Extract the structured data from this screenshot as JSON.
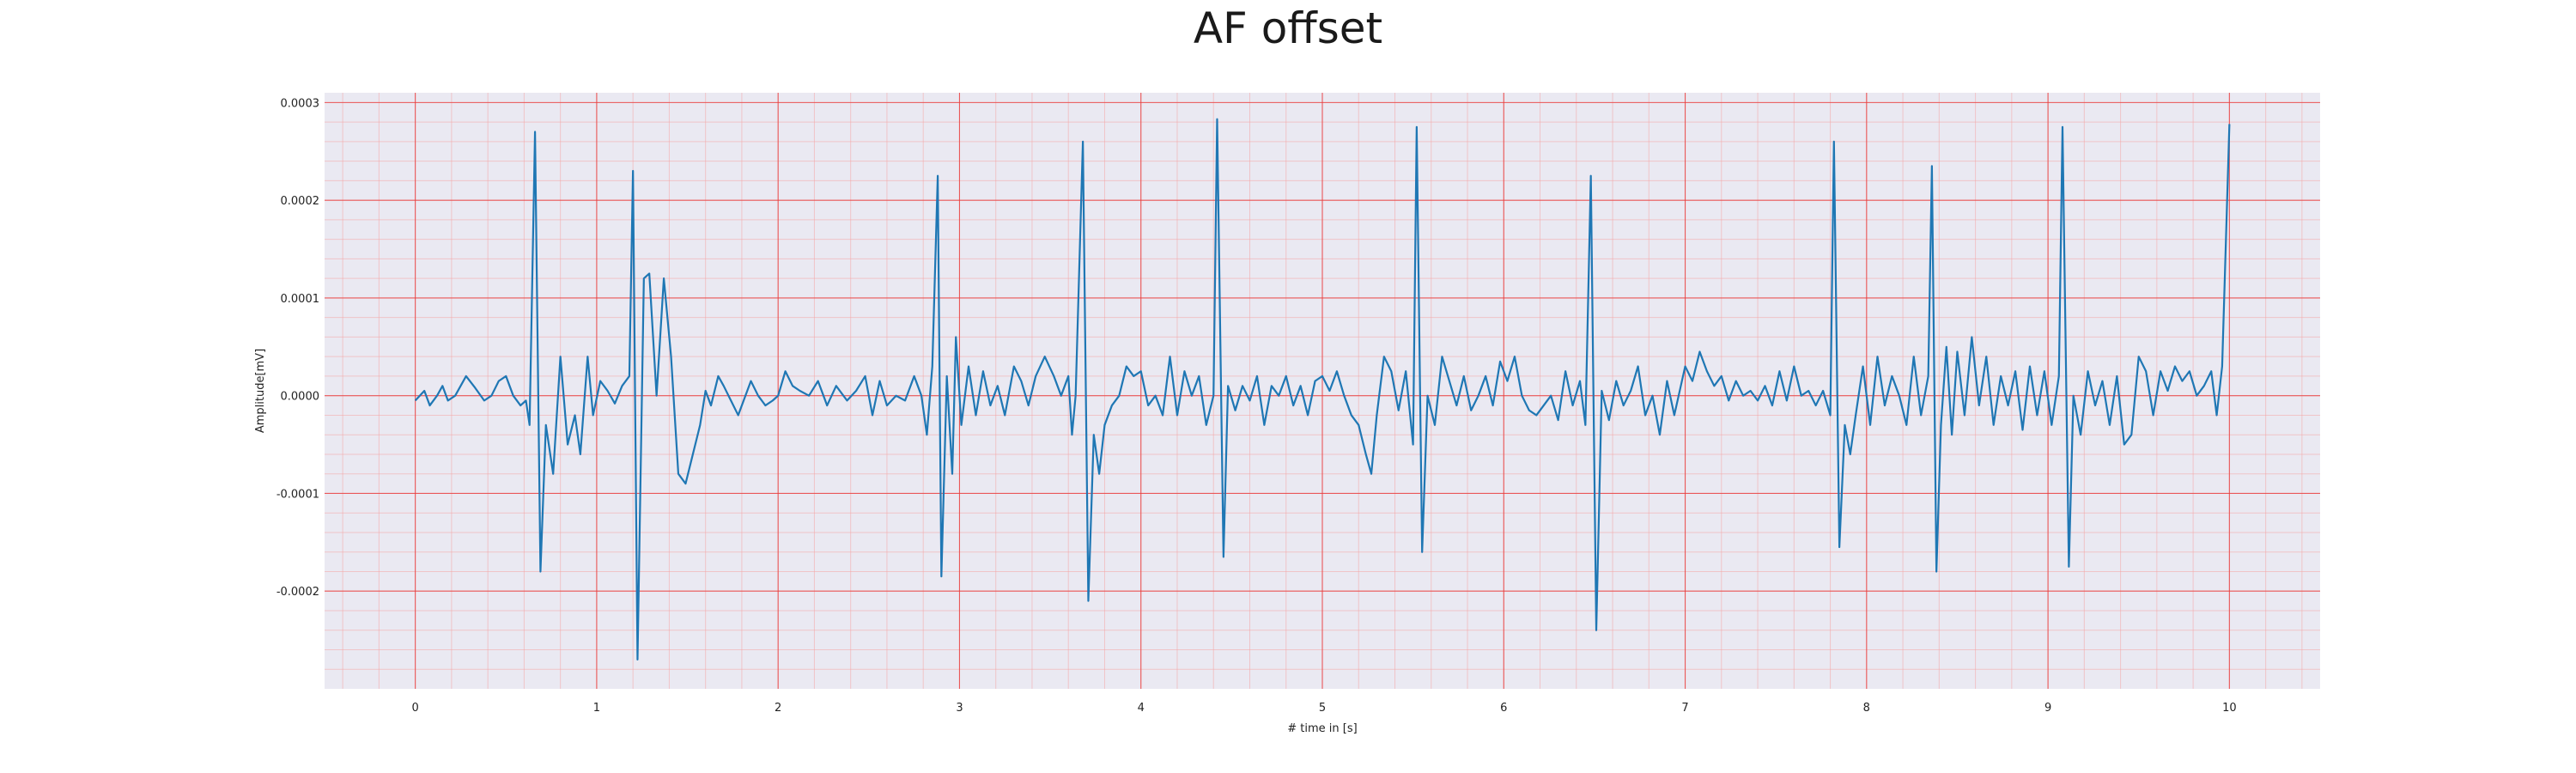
{
  "chart_data": {
    "type": "line",
    "title": "AF offset",
    "xlabel": "# time in [s]",
    "ylabel": "Amplitude[mV]",
    "xlim": [
      -0.5,
      10.5
    ],
    "ylim": [
      -0.0003,
      0.00031
    ],
    "x_ticks": [
      0,
      1,
      2,
      3,
      4,
      5,
      6,
      7,
      8,
      9,
      10
    ],
    "x_tick_labels": [
      "0",
      "1",
      "2",
      "3",
      "4",
      "5",
      "6",
      "7",
      "8",
      "9",
      "10"
    ],
    "y_ticks": [
      -0.0002,
      -0.0001,
      0.0,
      0.0001,
      0.0002,
      0.0003
    ],
    "y_tick_labels": [
      "-0.0002",
      "-0.0001",
      "0.0000",
      "0.0001",
      "0.0002",
      "0.0003"
    ],
    "grid": true,
    "series": [
      {
        "color": "#1f77b4",
        "points": [
          [
            0.0,
            -5e-06
          ],
          [
            0.05,
            5e-06
          ],
          [
            0.08,
            -1e-05
          ],
          [
            0.12,
            0.0
          ],
          [
            0.15,
            1e-05
          ],
          [
            0.18,
            -5e-06
          ],
          [
            0.22,
            0.0
          ],
          [
            0.28,
            2e-05
          ],
          [
            0.33,
            8e-06
          ],
          [
            0.38,
            -5e-06
          ],
          [
            0.42,
            0.0
          ],
          [
            0.46,
            1.5e-05
          ],
          [
            0.5,
            2e-05
          ],
          [
            0.54,
            0.0
          ],
          [
            0.58,
            -1e-05
          ],
          [
            0.61,
            -5e-06
          ],
          [
            0.63,
            -3e-05
          ],
          [
            0.66,
            0.00027
          ],
          [
            0.69,
            -0.00018
          ],
          [
            0.72,
            -3e-05
          ],
          [
            0.76,
            -8e-05
          ],
          [
            0.8,
            4e-05
          ],
          [
            0.84,
            -5e-05
          ],
          [
            0.88,
            -2e-05
          ],
          [
            0.91,
            -6e-05
          ],
          [
            0.95,
            4e-05
          ],
          [
            0.98,
            -2e-05
          ],
          [
            1.02,
            1.5e-05
          ],
          [
            1.06,
            5e-06
          ],
          [
            1.1,
            -8e-06
          ],
          [
            1.14,
            1e-05
          ],
          [
            1.18,
            2e-05
          ],
          [
            1.2,
            0.00023
          ],
          [
            1.225,
            -0.00027
          ],
          [
            1.26,
            0.00012
          ],
          [
            1.29,
            0.000125
          ],
          [
            1.33,
            0.0
          ],
          [
            1.37,
            0.00012
          ],
          [
            1.41,
            4e-05
          ],
          [
            1.45,
            -8e-05
          ],
          [
            1.49,
            -9e-05
          ],
          [
            1.53,
            -6e-05
          ],
          [
            1.57,
            -3e-05
          ],
          [
            1.6,
            5e-06
          ],
          [
            1.63,
            -1e-05
          ],
          [
            1.67,
            2e-05
          ],
          [
            1.7,
            1e-05
          ],
          [
            1.74,
            -5e-06
          ],
          [
            1.78,
            -2e-05
          ],
          [
            1.81,
            -5e-06
          ],
          [
            1.85,
            1.5e-05
          ],
          [
            1.89,
            0.0
          ],
          [
            1.93,
            -1e-05
          ],
          [
            1.97,
            -5e-06
          ],
          [
            2.0,
            0.0
          ],
          [
            2.04,
            2.5e-05
          ],
          [
            2.08,
            1e-05
          ],
          [
            2.12,
            5e-06
          ],
          [
            2.17,
            0.0
          ],
          [
            2.22,
            1.5e-05
          ],
          [
            2.27,
            -1e-05
          ],
          [
            2.32,
            1e-05
          ],
          [
            2.38,
            -5e-06
          ],
          [
            2.43,
            5e-06
          ],
          [
            2.48,
            2e-05
          ],
          [
            2.52,
            -2e-05
          ],
          [
            2.56,
            1.5e-05
          ],
          [
            2.6,
            -1e-05
          ],
          [
            2.65,
            0.0
          ],
          [
            2.7,
            -5e-06
          ],
          [
            2.75,
            2e-05
          ],
          [
            2.79,
            0.0
          ],
          [
            2.82,
            -4e-05
          ],
          [
            2.85,
            3e-05
          ],
          [
            2.88,
            0.000225
          ],
          [
            2.9,
            -0.000185
          ],
          [
            2.93,
            2e-05
          ],
          [
            2.96,
            -8e-05
          ],
          [
            2.98,
            6e-05
          ],
          [
            3.01,
            -3e-05
          ],
          [
            3.05,
            3e-05
          ],
          [
            3.09,
            -2e-05
          ],
          [
            3.13,
            2.5e-05
          ],
          [
            3.17,
            -1e-05
          ],
          [
            3.21,
            1e-05
          ],
          [
            3.25,
            -2e-05
          ],
          [
            3.3,
            3e-05
          ],
          [
            3.34,
            1.5e-05
          ],
          [
            3.38,
            -1e-05
          ],
          [
            3.42,
            2e-05
          ],
          [
            3.47,
            4e-05
          ],
          [
            3.52,
            2e-05
          ],
          [
            3.56,
            0.0
          ],
          [
            3.6,
            2e-05
          ],
          [
            3.62,
            -4e-05
          ],
          [
            3.64,
            0.0
          ],
          [
            3.68,
            0.00026
          ],
          [
            3.71,
            -0.00021
          ],
          [
            3.74,
            -4e-05
          ],
          [
            3.77,
            -8e-05
          ],
          [
            3.8,
            -3e-05
          ],
          [
            3.84,
            -1e-05
          ],
          [
            3.88,
            0.0
          ],
          [
            3.92,
            3e-05
          ],
          [
            3.96,
            2e-05
          ],
          [
            4.0,
            2.5e-05
          ],
          [
            4.04,
            -1e-05
          ],
          [
            4.08,
            0.0
          ],
          [
            4.12,
            -2e-05
          ],
          [
            4.16,
            4e-05
          ],
          [
            4.2,
            -2e-05
          ],
          [
            4.24,
            2.5e-05
          ],
          [
            4.28,
            0.0
          ],
          [
            4.32,
            2e-05
          ],
          [
            4.36,
            -3e-05
          ],
          [
            4.4,
            0.0
          ],
          [
            4.42,
            0.000283
          ],
          [
            4.455,
            -0.000165
          ],
          [
            4.48,
            1e-05
          ],
          [
            4.52,
            -1.5e-05
          ],
          [
            4.56,
            1e-05
          ],
          [
            4.6,
            -5e-06
          ],
          [
            4.64,
            2e-05
          ],
          [
            4.68,
            -3e-05
          ],
          [
            4.72,
            1e-05
          ],
          [
            4.76,
            0.0
          ],
          [
            4.8,
            2e-05
          ],
          [
            4.84,
            -1e-05
          ],
          [
            4.88,
            1e-05
          ],
          [
            4.92,
            -2e-05
          ],
          [
            4.96,
            1.5e-05
          ],
          [
            5.0,
            2e-05
          ],
          [
            5.04,
            5e-06
          ],
          [
            5.08,
            2.5e-05
          ],
          [
            5.12,
            0.0
          ],
          [
            5.16,
            -2e-05
          ],
          [
            5.2,
            -3e-05
          ],
          [
            5.24,
            -6e-05
          ],
          [
            5.27,
            -8e-05
          ],
          [
            5.3,
            -2e-05
          ],
          [
            5.34,
            4e-05
          ],
          [
            5.38,
            2.5e-05
          ],
          [
            5.42,
            -1.5e-05
          ],
          [
            5.46,
            2.5e-05
          ],
          [
            5.5,
            -5e-05
          ],
          [
            5.52,
            0.000275
          ],
          [
            5.55,
            -0.00016
          ],
          [
            5.58,
            0.0
          ],
          [
            5.62,
            -3e-05
          ],
          [
            5.66,
            4e-05
          ],
          [
            5.7,
            1.5e-05
          ],
          [
            5.74,
            -1e-05
          ],
          [
            5.78,
            2e-05
          ],
          [
            5.82,
            -1.5e-05
          ],
          [
            5.86,
            0.0
          ],
          [
            5.9,
            2e-05
          ],
          [
            5.94,
            -1e-05
          ],
          [
            5.98,
            3.5e-05
          ],
          [
            6.02,
            1.5e-05
          ],
          [
            6.06,
            4e-05
          ],
          [
            6.1,
            0.0
          ],
          [
            6.14,
            -1.5e-05
          ],
          [
            6.18,
            -2e-05
          ],
          [
            6.22,
            -1e-05
          ],
          [
            6.26,
            0.0
          ],
          [
            6.3,
            -2.5e-05
          ],
          [
            6.34,
            2.5e-05
          ],
          [
            6.38,
            -1e-05
          ],
          [
            6.42,
            1.5e-05
          ],
          [
            6.45,
            -3e-05
          ],
          [
            6.48,
            0.000225
          ],
          [
            6.51,
            -0.00024
          ],
          [
            6.54,
            5e-06
          ],
          [
            6.58,
            -2.5e-05
          ],
          [
            6.62,
            1.5e-05
          ],
          [
            6.66,
            -1e-05
          ],
          [
            6.7,
            5e-06
          ],
          [
            6.74,
            3e-05
          ],
          [
            6.78,
            -2e-05
          ],
          [
            6.82,
            0.0
          ],
          [
            6.86,
            -4e-05
          ],
          [
            6.9,
            1.5e-05
          ],
          [
            6.94,
            -2e-05
          ],
          [
            7.0,
            3e-05
          ],
          [
            7.04,
            1.5e-05
          ],
          [
            7.08,
            4.5e-05
          ],
          [
            7.12,
            2.5e-05
          ],
          [
            7.16,
            1e-05
          ],
          [
            7.2,
            2e-05
          ],
          [
            7.24,
            -5e-06
          ],
          [
            7.28,
            1.5e-05
          ],
          [
            7.32,
            0.0
          ],
          [
            7.36,
            5e-06
          ],
          [
            7.4,
            -5e-06
          ],
          [
            7.44,
            1e-05
          ],
          [
            7.48,
            -1e-05
          ],
          [
            7.52,
            2.5e-05
          ],
          [
            7.56,
            -5e-06
          ],
          [
            7.6,
            3e-05
          ],
          [
            7.64,
            0.0
          ],
          [
            7.68,
            5e-06
          ],
          [
            7.72,
            -1e-05
          ],
          [
            7.76,
            5e-06
          ],
          [
            7.8,
            -2e-05
          ],
          [
            7.82,
            0.00026
          ],
          [
            7.85,
            -0.000155
          ],
          [
            7.88,
            -3e-05
          ],
          [
            7.91,
            -6e-05
          ],
          [
            7.94,
            -2e-05
          ],
          [
            7.98,
            3e-05
          ],
          [
            8.02,
            -3e-05
          ],
          [
            8.06,
            4e-05
          ],
          [
            8.1,
            -1e-05
          ],
          [
            8.14,
            2e-05
          ],
          [
            8.18,
            0.0
          ],
          [
            8.22,
            -3e-05
          ],
          [
            8.26,
            4e-05
          ],
          [
            8.3,
            -2e-05
          ],
          [
            8.34,
            2e-05
          ],
          [
            8.36,
            0.000235
          ],
          [
            8.385,
            -0.00018
          ],
          [
            8.41,
            -3e-05
          ],
          [
            8.44,
            5e-05
          ],
          [
            8.47,
            -4e-05
          ],
          [
            8.5,
            4.5e-05
          ],
          [
            8.54,
            -2e-05
          ],
          [
            8.58,
            6e-05
          ],
          [
            8.62,
            -1e-05
          ],
          [
            8.66,
            4e-05
          ],
          [
            8.7,
            -3e-05
          ],
          [
            8.74,
            2e-05
          ],
          [
            8.78,
            -1e-05
          ],
          [
            8.82,
            2.5e-05
          ],
          [
            8.86,
            -3.5e-05
          ],
          [
            8.9,
            3e-05
          ],
          [
            8.94,
            -2e-05
          ],
          [
            8.98,
            2.5e-05
          ],
          [
            9.02,
            -3e-05
          ],
          [
            9.06,
            2e-05
          ],
          [
            9.08,
            0.000275
          ],
          [
            9.115,
            -0.000175
          ],
          [
            9.14,
            0.0
          ],
          [
            9.18,
            -4e-05
          ],
          [
            9.22,
            2.5e-05
          ],
          [
            9.26,
            -1e-05
          ],
          [
            9.3,
            1.5e-05
          ],
          [
            9.34,
            -3e-05
          ],
          [
            9.38,
            2e-05
          ],
          [
            9.42,
            -5e-05
          ],
          [
            9.46,
            -4e-05
          ],
          [
            9.5,
            4e-05
          ],
          [
            9.54,
            2.5e-05
          ],
          [
            9.58,
            -2e-05
          ],
          [
            9.62,
            2.5e-05
          ],
          [
            9.66,
            5e-06
          ],
          [
            9.7,
            3e-05
          ],
          [
            9.74,
            1.5e-05
          ],
          [
            9.78,
            2.5e-05
          ],
          [
            9.82,
            0.0
          ],
          [
            9.86,
            1e-05
          ],
          [
            9.9,
            2.5e-05
          ],
          [
            9.93,
            -2e-05
          ],
          [
            9.96,
            3e-05
          ],
          [
            10.0,
            0.000278
          ]
        ]
      }
    ]
  }
}
